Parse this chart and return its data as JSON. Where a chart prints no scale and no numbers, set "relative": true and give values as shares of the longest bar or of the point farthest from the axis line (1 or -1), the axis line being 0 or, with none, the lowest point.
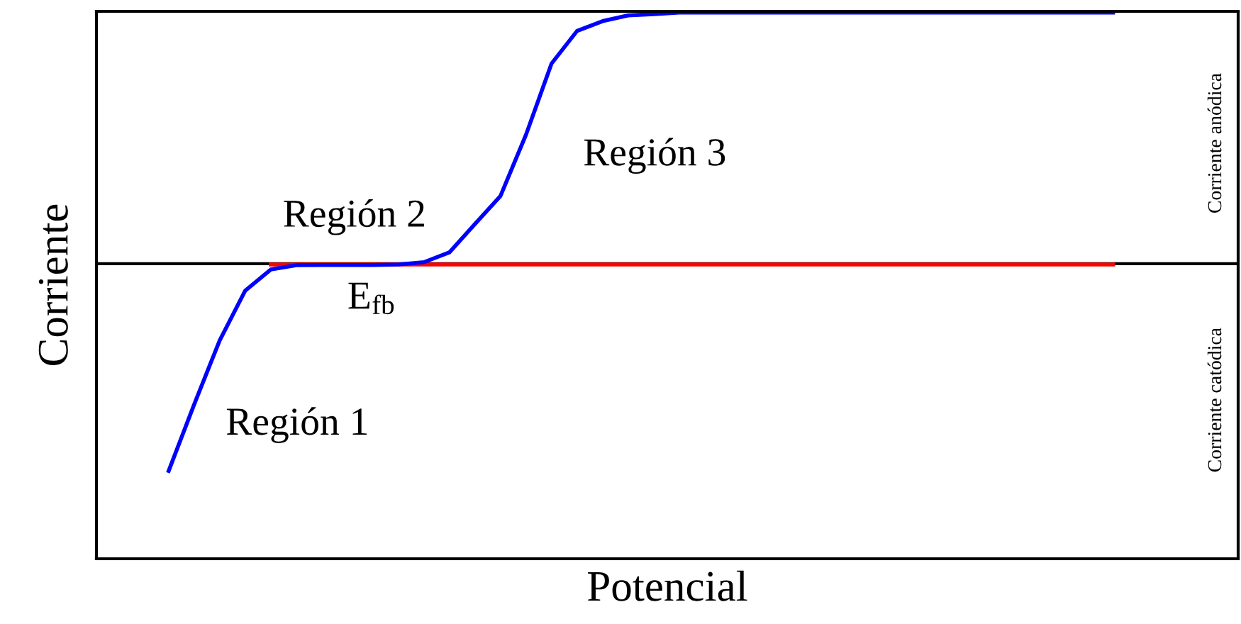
{
  "chart_data": {
    "type": "line",
    "relative": true,
    "xlabel": "Potencial",
    "ylabel": "Corriente",
    "categories": [
      null,
      null,
      null,
      null,
      null,
      null,
      null,
      null,
      null,
      null,
      null,
      null,
      null,
      null,
      null,
      null,
      null,
      null,
      null,
      null,
      null,
      null,
      null,
      null,
      null,
      null,
      null,
      null,
      null,
      null,
      null,
      null,
      null,
      null,
      null,
      null,
      null,
      null
    ],
    "series": [
      {
        "color": "#ff0000",
        "values": [
          null,
          null,
          null,
          null,
          -0.003,
          -0.003,
          -0.003,
          -0.003,
          -0.003,
          -0.003,
          -0.003,
          -0.003,
          -0.003,
          -0.003,
          -0.003,
          -0.003,
          -0.003,
          -0.003,
          -0.003,
          -0.003,
          -0.003,
          -0.003,
          -0.003,
          -0.003,
          -0.003,
          -0.003,
          -0.003,
          -0.003,
          -0.003,
          -0.003,
          -0.003,
          -0.003,
          -0.003,
          -0.003,
          -0.003,
          -0.003,
          -0.003,
          -0.003
        ]
      },
      {
        "color": "#0000ff",
        "values": [
          -0.825,
          -0.56,
          -0.305,
          -0.107,
          -0.023,
          -0.006,
          -0.005,
          -0.005,
          -0.005,
          -0.003,
          0.006,
          0.045,
          0.158,
          0.27,
          0.514,
          0.797,
          0.927,
          0.966,
          0.989,
          0.994,
          1.0,
          1.0,
          1.0,
          1.0,
          1.0,
          1.0,
          1.0,
          1.0,
          1.0,
          1.0,
          1.0,
          1.0,
          1.0,
          1.0,
          1.0,
          1.0,
          1.0,
          1.0
        ]
      }
    ],
    "annotations": [
      "Región 1",
      "Región 2",
      "Región 3",
      "E$_{fb}$",
      "Corriente anódica",
      "Corriente catódica"
    ],
    "legend": false,
    "marker": "none",
    "line_style": "solid"
  }
}
